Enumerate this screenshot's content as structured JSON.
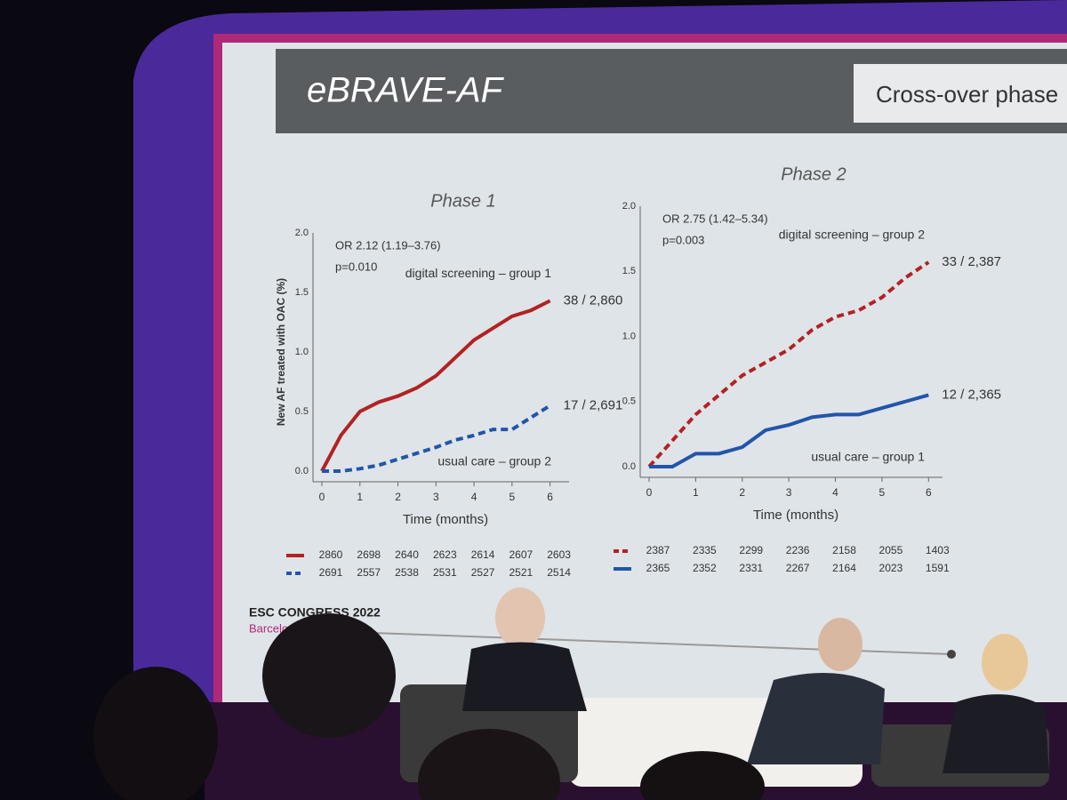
{
  "slide": {
    "title": "eBRAVE-AF",
    "subtitle": "Cross-over phase",
    "footer": [
      "ESC CONGRESS 2022",
      "Barcelona"
    ]
  },
  "chart_data": [
    {
      "type": "line",
      "title": "Phase 1",
      "y_label": "New AF treated with OAC (%)",
      "x_label": "Time (months)",
      "annotations": [
        "OR 2.12 (1.19–3.76)",
        "p=0.010"
      ],
      "x": [
        0,
        0.5,
        1,
        1.5,
        2,
        2.5,
        3,
        3.5,
        4,
        4.5,
        5,
        5.5,
        6
      ],
      "series": [
        {
          "name": "digital screening – group 1",
          "color": "#b22222",
          "dashed": false,
          "end_label": "38 / 2,860",
          "values": [
            0,
            0.3,
            0.5,
            0.58,
            0.63,
            0.7,
            0.8,
            0.95,
            1.1,
            1.2,
            1.3,
            1.35,
            1.43
          ]
        },
        {
          "name": "usual care – group 2",
          "color": "#2255aa",
          "dashed": true,
          "end_label": "17 / 2,691",
          "values": [
            0,
            0,
            0.02,
            0.05,
            0.1,
            0.15,
            0.2,
            0.26,
            0.3,
            0.35,
            0.35,
            0.45,
            0.55
          ]
        }
      ],
      "at_risk": [
        [
          2860,
          2698,
          2640,
          2623,
          2614,
          2607,
          2603
        ],
        [
          2691,
          2557,
          2538,
          2531,
          2527,
          2521,
          2514
        ]
      ],
      "xlim": [
        0,
        6.5
      ],
      "xticks": [
        0,
        1,
        2,
        3,
        4,
        5,
        6
      ],
      "ylim": [
        0,
        2
      ],
      "yticks": [
        {
          "value": 0,
          "label": "0.0"
        },
        0.5,
        {
          "value": 1,
          "label": "1.0"
        },
        1.5,
        {
          "value": 2,
          "label": "2.0"
        }
      ]
    },
    {
      "type": "line",
      "title": "Phase 2",
      "x_label": "Time (months)",
      "annotations": [
        "OR 2.75 (1.42–5.34)",
        "p=0.003"
      ],
      "x": [
        0,
        0.5,
        1,
        1.5,
        2,
        2.5,
        3,
        3.5,
        4,
        4.5,
        5,
        5.5,
        6
      ],
      "series": [
        {
          "name": "digital screening – group 2",
          "color": "#b22222",
          "dashed": true,
          "end_label": "33 / 2,387",
          "values": [
            0,
            0.2,
            0.4,
            0.55,
            0.7,
            0.8,
            0.9,
            1.05,
            1.15,
            1.2,
            1.3,
            1.45,
            1.57
          ]
        },
        {
          "name": "usual care – group 1",
          "color": "#2255aa",
          "dashed": false,
          "end_label": "12 / 2,365",
          "values": [
            0,
            0,
            0.1,
            0.1,
            0.15,
            0.28,
            0.32,
            0.38,
            0.4,
            0.4,
            0.45,
            0.5,
            0.55
          ]
        }
      ],
      "at_risk": [
        [
          2387,
          2335,
          2299,
          2236,
          2158,
          2055,
          1403
        ],
        [
          2365,
          2352,
          2331,
          2267,
          2164,
          2023,
          1591
        ]
      ],
      "xlim": [
        0,
        6.3
      ],
      "xticks": [
        0,
        1,
        2,
        3,
        4,
        5,
        6
      ],
      "ylim": [
        0,
        2
      ],
      "yticks": [
        {
          "value": 0,
          "label": "0.0"
        },
        0.5,
        {
          "value": 1,
          "label": "1.0"
        },
        1.5,
        {
          "value": 2,
          "label": "2.0"
        }
      ]
    }
  ]
}
